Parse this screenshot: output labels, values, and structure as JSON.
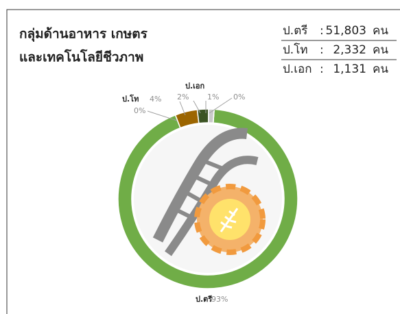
{
  "chart_data": {
    "type": "donut",
    "title": [
      "กลุ่มด้านอาหาร เกษตร",
      "และเทคโนโลยีชีวภาพ"
    ],
    "categories": [
      "ป.ตรี",
      null,
      "ป.โท",
      "ป.เอก",
      null,
      null
    ],
    "values": [
      93,
      0,
      4,
      2,
      1,
      0
    ],
    "value_labels": [
      "93%",
      "0%",
      "4%",
      "2%",
      "1%",
      "0%"
    ],
    "colors": [
      "#70ad47",
      "#a5a5a5",
      "#9c6500",
      "#3b5323",
      "#c9c9c9",
      "#ed7d31"
    ],
    "table": [
      {
        "level": "ป.ตรี",
        "sep": ":",
        "count": "51,803",
        "unit": "คน"
      },
      {
        "level": "ป.โท",
        "sep": ":",
        "count": "2,332",
        "unit": "คน"
      },
      {
        "level": "ป.เอก",
        "sep": ":",
        "count": "1,131",
        "unit": "คน"
      }
    ]
  }
}
